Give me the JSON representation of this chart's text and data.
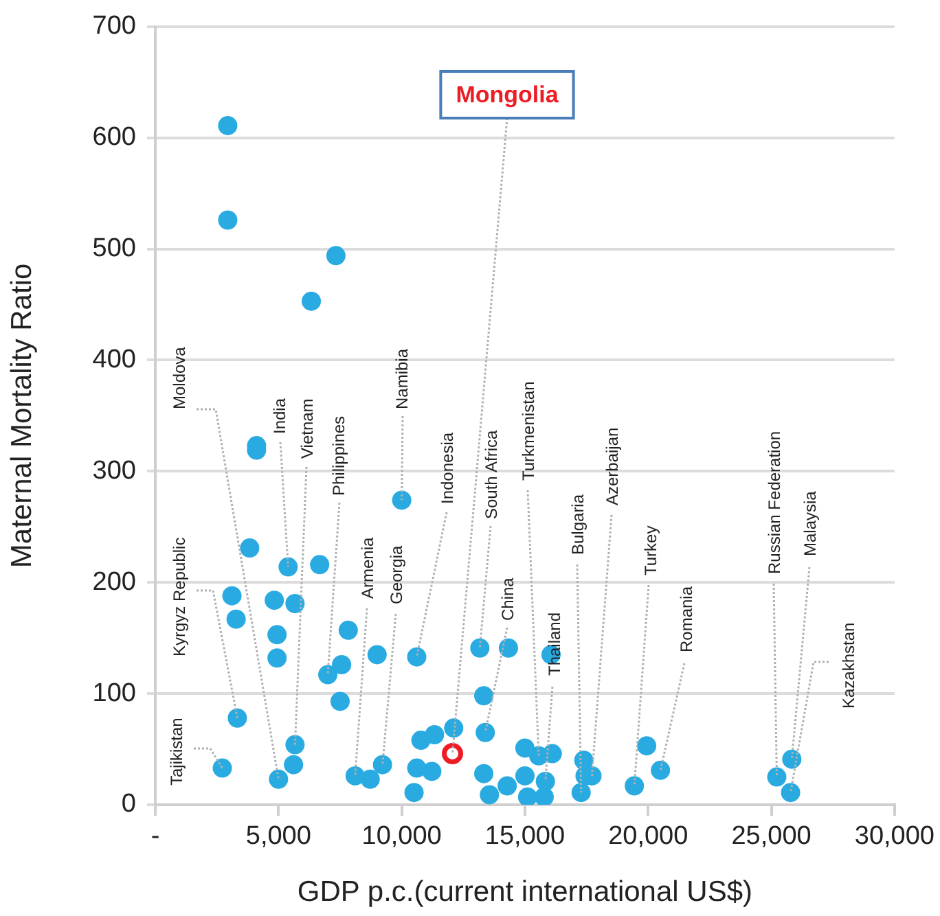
{
  "chart_data": {
    "type": "scatter",
    "xlabel": "GDP p.c.(current international US$)",
    "ylabel": "Maternal Mortality Ratio",
    "xlim": [
      0,
      30000
    ],
    "ylim": [
      0,
      700
    ],
    "xticks": [
      {
        "value": 0,
        "label": "-"
      },
      {
        "value": 5000,
        "label": "5,000"
      },
      {
        "value": 10000,
        "label": "10,000"
      },
      {
        "value": 15000,
        "label": "15,000"
      },
      {
        "value": 20000,
        "label": "20,000"
      },
      {
        "value": 25000,
        "label": "25,000"
      },
      {
        "value": 30000,
        "label": "30,000"
      }
    ],
    "yticks": [
      0,
      100,
      200,
      300,
      400,
      500,
      600,
      700
    ],
    "grid": "y",
    "marker": "circle",
    "series": [
      {
        "color": "#29abe2",
        "x": [
          2940,
          2940,
          7330,
          6330,
          4110,
          4110,
          3830,
          5390,
          6670,
          3110,
          4830,
          5670,
          3280,
          4940,
          4940,
          7830,
          9000,
          10610,
          7560,
          7000,
          7500,
          10000,
          3330,
          5670,
          5610,
          2720,
          5000,
          8110,
          8720,
          9220,
          10500,
          10610,
          10780,
          11330,
          11220,
          12110,
          13170,
          14330,
          13330,
          13390,
          13330,
          13560,
          14280,
          15000,
          15000,
          15110,
          15780,
          15830,
          15560,
          16110,
          16060,
          17280,
          17390,
          17440,
          17720,
          19440,
          19940,
          20500,
          25220,
          25830,
          25780
        ],
        "values": [
          611,
          526,
          494,
          453,
          323,
          319,
          231,
          214,
          216,
          188,
          184,
          181,
          167,
          153,
          132,
          157,
          135,
          133,
          126,
          117,
          93,
          274,
          78,
          54,
          36,
          33,
          23,
          26,
          23,
          36,
          11,
          33,
          58,
          63,
          30,
          69,
          141,
          141,
          98,
          65,
          28,
          9,
          17,
          26,
          51,
          7,
          7,
          21,
          44,
          46,
          135,
          11,
          40,
          26,
          26,
          17,
          53,
          31,
          25,
          41,
          11
        ]
      },
      {
        "color": "#ee1c25",
        "x": [
          12060
        ],
        "values": [
          46
        ]
      }
    ],
    "annotations": [
      {
        "text": "Moldova",
        "x": 5000,
        "y": 23
      },
      {
        "text": "India",
        "x": 5390,
        "y": 214
      },
      {
        "text": "Vietnam",
        "x": 5670,
        "y": 54
      },
      {
        "text": "Philippines",
        "x": 7000,
        "y": 117
      },
      {
        "text": "Namibia",
        "x": 10000,
        "y": 274
      },
      {
        "text": "Kyrgyz Republic",
        "x": 3330,
        "y": 78
      },
      {
        "text": "Tajikistan",
        "x": 2720,
        "y": 33
      },
      {
        "text": "Armenia",
        "x": 8110,
        "y": 26
      },
      {
        "text": "Georgia",
        "x": 9220,
        "y": 36
      },
      {
        "text": "Indonesia",
        "x": 10610,
        "y": 133
      },
      {
        "text": "South Africa",
        "x": 13170,
        "y": 141
      },
      {
        "text": "China",
        "x": 13390,
        "y": 65
      },
      {
        "text": "Turkmenistan",
        "x": 15560,
        "y": 44
      },
      {
        "text": "Thailand",
        "x": 15830,
        "y": 21
      },
      {
        "text": "Bulgaria",
        "x": 17280,
        "y": 11
      },
      {
        "text": "Azerbaijan",
        "x": 17720,
        "y": 26
      },
      {
        "text": "Turkey",
        "x": 19440,
        "y": 17
      },
      {
        "text": "Romania",
        "x": 20500,
        "y": 31
      },
      {
        "text": "Russian Federation",
        "x": 25220,
        "y": 25
      },
      {
        "text": "Malaysia",
        "x": 25830,
        "y": 41
      },
      {
        "text": "Kazakhstan",
        "x": 25780,
        "y": 11
      },
      {
        "text": "Mongolia",
        "x": 12060,
        "y": 46
      }
    ]
  }
}
